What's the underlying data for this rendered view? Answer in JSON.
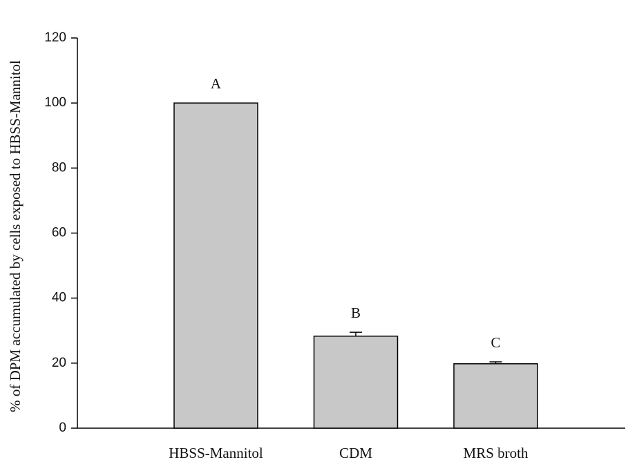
{
  "chart_data": {
    "type": "bar",
    "y_label": "% of DPM accumulated by cells exposed to HBSS-Mannitol",
    "categories": [
      "HBSS-Mannitol",
      "CDM",
      "MRS broth"
    ],
    "values": [
      100,
      28.3,
      19.8
    ],
    "errors": [
      0,
      1.2,
      0.6
    ],
    "annotations": [
      "A",
      "B",
      "C"
    ],
    "color": "#c8c8c8",
    "ylim": [
      0,
      120
    ],
    "yticks": [
      0,
      20,
      40,
      60,
      80,
      100,
      120
    ],
    "grid": false
  }
}
